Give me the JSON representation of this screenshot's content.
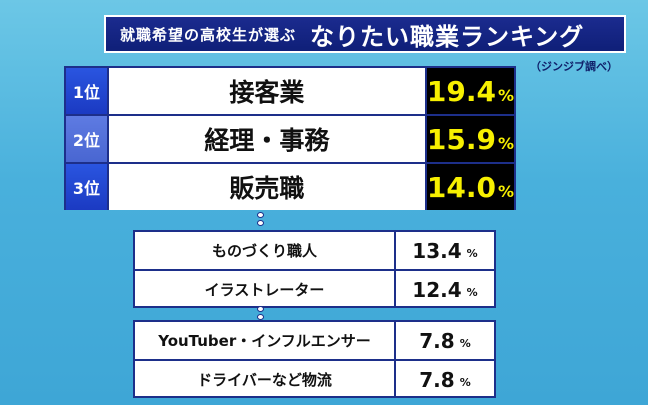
{
  "header": {
    "subtitle": "就職希望の高校生が選ぶ",
    "title": "なりたい職業ランキング",
    "source": "（ジンジブ調べ）"
  },
  "top_ranks": [
    {
      "rank": "1位",
      "job": "接客業",
      "percent": "19.4",
      "unit": "%"
    },
    {
      "rank": "2位",
      "job": "経理・事務",
      "percent": "15.9",
      "unit": "%"
    },
    {
      "rank": "3位",
      "job": "販売職",
      "percent": "14.0",
      "unit": "%"
    }
  ],
  "group_a": [
    {
      "job": "ものづくり職人",
      "percent": "13.4",
      "unit": "%"
    },
    {
      "job": "イラストレーター",
      "percent": "12.4",
      "unit": "%"
    }
  ],
  "group_b": [
    {
      "job": "YouTuber・インフルエンサー",
      "percent": "7.8",
      "unit": "%"
    },
    {
      "job": "ドライバーなど物流",
      "percent": "7.8",
      "unit": "%"
    }
  ],
  "colors": {
    "navy": "#1d2f8a",
    "rank_blue": "#1b3ac2",
    "highlight_yellow": "#f7f000",
    "background_sky": "#49b0dc"
  }
}
